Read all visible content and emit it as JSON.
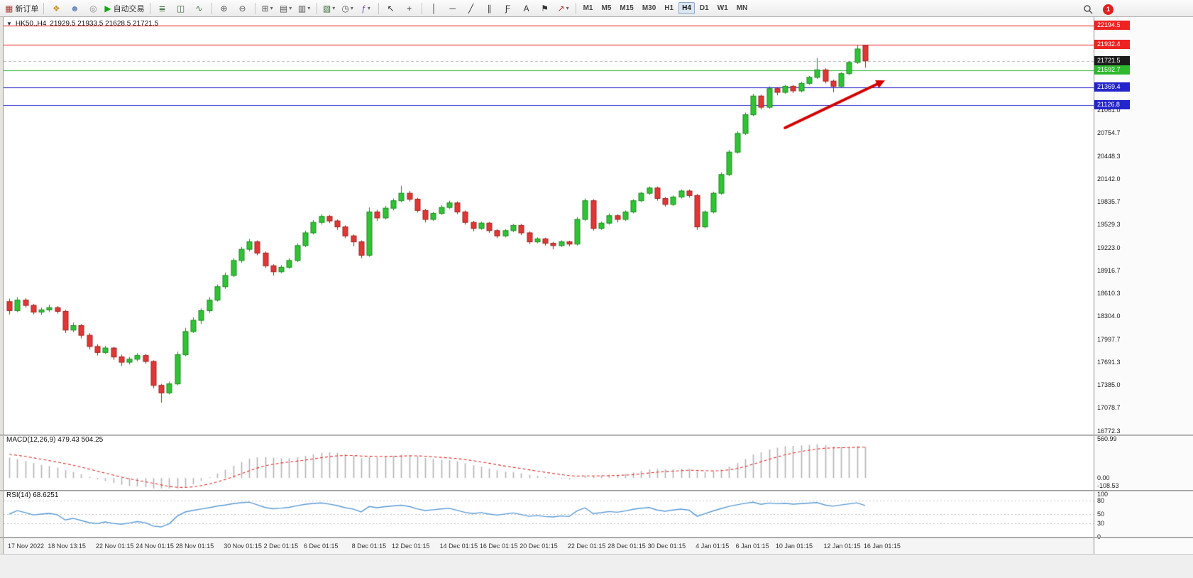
{
  "toolbar": {
    "dropdown_glyph": "▾",
    "notification_count": "1",
    "active_timeframe": "H4",
    "timeframes": [
      "M1",
      "M5",
      "M15",
      "M30",
      "H1",
      "H4",
      "D1",
      "W1",
      "MN"
    ],
    "groups": [
      {
        "items": [
          {
            "name": "new-order-button",
            "icon": "new-order-icon",
            "glyph": "▦",
            "color": "#b23b3b",
            "label": "新订单"
          }
        ]
      },
      {
        "items": [
          {
            "name": "charts-button",
            "icon": "charts-icon",
            "glyph": "❖",
            "color": "#c79c2e"
          },
          {
            "name": "profile-button",
            "icon": "profile-icon",
            "glyph": "☻",
            "color": "#6b86b5"
          },
          {
            "name": "market-button",
            "icon": "market-icon",
            "glyph": "◎",
            "color": "#888888"
          },
          {
            "name": "autotrading-button",
            "icon": "autotrading-play-icon",
            "glyph": "▶",
            "color": "#18a818",
            "label": "自动交易"
          }
        ]
      },
      {
        "items": [
          {
            "name": "bar-chart-mode-button",
            "icon": "bar-chart-icon",
            "glyph": "≣",
            "color": "#3f6f3f"
          },
          {
            "name": "candlestick-mode-button",
            "icon": "candlestick-icon",
            "glyph": "◫",
            "color": "#3f6f3f"
          },
          {
            "name": "line-chart-mode-button",
            "icon": "line-chart-icon",
            "glyph": "∿",
            "color": "#3f6f3f"
          }
        ]
      },
      {
        "items": [
          {
            "name": "zoom-in-button",
            "icon": "zoom-in-icon",
            "glyph": "⊕",
            "color": "#555555"
          },
          {
            "name": "zoom-out-button",
            "icon": "zoom-out-icon",
            "glyph": "⊖",
            "color": "#555555"
          }
        ]
      },
      {
        "items": [
          {
            "name": "tile-windows-button",
            "icon": "tile-windows-icon",
            "glyph": "⊞",
            "color": "#555555",
            "dropdown": true
          },
          {
            "name": "cascade-windows-button",
            "icon": "cascade-windows-icon",
            "glyph": "▤",
            "color": "#555555",
            "dropdown": true
          },
          {
            "name": "arrange-windows-button",
            "icon": "arrange-windows-icon",
            "glyph": "▥",
            "color": "#555555",
            "dropdown": true
          }
        ]
      },
      {
        "items": [
          {
            "name": "new-chart-button",
            "icon": "new-chart-icon",
            "glyph": "▧",
            "color": "#3a6a3a",
            "dropdown": true
          },
          {
            "name": "profiles-button",
            "icon": "clock-icon",
            "glyph": "◷",
            "color": "#555555",
            "dropdown": true
          },
          {
            "name": "indicators-button",
            "icon": "indicators-icon",
            "glyph": "ƒ",
            "color": "#7a4f9e",
            "dropdown": true
          }
        ]
      },
      {
        "items": [
          {
            "name": "cursor-button",
            "icon": "cursor-icon",
            "glyph": "↖",
            "color": "#333333"
          },
          {
            "name": "crosshair-button",
            "icon": "crosshair-icon",
            "glyph": "+",
            "color": "#333333"
          }
        ]
      },
      {
        "items": [
          {
            "name": "vertical-line-button",
            "icon": "vertical-line-icon",
            "glyph": "│",
            "color": "#333333"
          },
          {
            "name": "horizontal-line-button",
            "icon": "horizontal-line-icon",
            "glyph": "─",
            "color": "#333333"
          },
          {
            "name": "trendline-button",
            "icon": "trendline-icon",
            "glyph": "╱",
            "color": "#333333"
          },
          {
            "name": "channel-button",
            "icon": "channel-icon",
            "glyph": "∥",
            "color": "#333333"
          },
          {
            "name": "fibonacci-button",
            "icon": "fibonacci-icon",
            "glyph": "Ƒ",
            "color": "#333333"
          },
          {
            "name": "text-button",
            "icon": "text-icon",
            "glyph": "A",
            "color": "#333333"
          },
          {
            "name": "label-button",
            "icon": "label-icon",
            "glyph": "⚑",
            "color": "#333333"
          },
          {
            "name": "shapes-button",
            "icon": "arrow-shapes-icon",
            "glyph": "↗",
            "color": "#aa3333",
            "dropdown": true
          }
        ]
      },
      {
        "timeframes": true
      }
    ]
  },
  "chart": {
    "header": {
      "toggle_glyph": "▼",
      "symbol_period": "HK50.,H4",
      "ohlc_text": "21929.5 21933.5 21628.5 21721.5"
    },
    "panels": {
      "macd_label": "MACD(12,26,9) 479.43 504.25",
      "rsi_label": "RSI(14) 68.6251"
    }
  },
  "chart_data": {
    "type": "candlestick",
    "symbol": "HK50.",
    "timeframe": "H4",
    "last_candle_ohlc": [
      21929.5,
      21933.5,
      21628.5,
      21721.5
    ],
    "grid": false,
    "price_axis": {
      "range_top": 22250,
      "range_bottom": 16760,
      "tick_labels": [
        "21061.0",
        "20754.7",
        "20448.3",
        "20142.0",
        "19835.7",
        "19529.3",
        "19223.0",
        "18916.7",
        "18610.3",
        "18304.0",
        "17997.7",
        "17691.3",
        "17385.0",
        "17078.7",
        "16772.3"
      ]
    },
    "x_axis": {
      "tick_indices": [
        0,
        5,
        11,
        16,
        21,
        27,
        32,
        37,
        43,
        48,
        54,
        59,
        64,
        70,
        75,
        80,
        86,
        91,
        96,
        102,
        107
      ],
      "tick_labels": [
        "17 Nov 2022",
        "18 Nov 13:15",
        "22 Nov 01:15",
        "24 Nov 01:15",
        "28 Nov 01:15",
        "30 Nov 01:15",
        "2 Dec 01:15",
        "6 Dec 01:15",
        "8 Dec 01:15",
        "12 Dec 01:15",
        "14 Dec 01:15",
        "16 Dec 01:15",
        "20 Dec 01:15",
        "22 Dec 01:15",
        "28 Dec 01:15",
        "30 Dec 01:15",
        "4 Jan 01:15",
        "6 Jan 01:15",
        "10 Jan 01:15",
        "12 Jan 01:15",
        "16 Jan 01:15"
      ]
    },
    "hlines": [
      {
        "price": 22194.5,
        "label": "22194.5",
        "color": "#ee2222"
      },
      {
        "price": 21932.4,
        "label": "21932.4",
        "color": "#ee2222"
      },
      {
        "price": 21592.7,
        "label": "21592.7",
        "color": "#2eb82e"
      },
      {
        "price": 21369.4,
        "label": "21369.4",
        "color": "#2424cc"
      },
      {
        "price": 21126.8,
        "label": "21126.8",
        "color": "#2424cc"
      }
    ],
    "bid_line": {
      "price": 21721.5,
      "label": "21721.5",
      "badge_color": "#1c1c1c"
    },
    "annotations": [
      {
        "type": "arrow",
        "from_index": 97,
        "from_price": 20825,
        "to_index": 109.5,
        "to_price": 21460,
        "color": "#d40000"
      }
    ],
    "indicators": [
      {
        "type": "MACD",
        "params": [
          12,
          26,
          9
        ],
        "current": [
          479.43,
          504.25
        ],
        "scale_labels": [
          "560.99",
          "0.00",
          "-108.53"
        ],
        "scale_values": [
          560.99,
          0,
          -108.53
        ]
      },
      {
        "type": "RSI",
        "params": [
          14
        ],
        "current": 68.6251,
        "scale_labels": [
          "100",
          "80",
          "50",
          "30",
          "0"
        ],
        "scale_values": [
          100,
          80,
          50,
          30,
          0
        ],
        "level_lines": [
          80,
          50,
          30
        ]
      }
    ],
    "colors": {
      "up_fill": "#2fc435",
      "up_stroke": "#1a8a1f",
      "down_fill": "#e33636",
      "down_stroke": "#a01f1f",
      "macd_hist": "#b4b4b4",
      "macd_signal": "#e03030",
      "rsi": "#5b9bd5",
      "arrow": "#d40000"
    },
    "candles": [
      [
        18500,
        18540,
        18330,
        18380
      ],
      [
        18380,
        18560,
        18360,
        18520
      ],
      [
        18520,
        18545,
        18420,
        18450
      ],
      [
        18450,
        18470,
        18330,
        18360
      ],
      [
        18360,
        18420,
        18320,
        18390
      ],
      [
        18390,
        18460,
        18360,
        18420
      ],
      [
        18420,
        18440,
        18340,
        18370
      ],
      [
        18370,
        18390,
        18080,
        18120
      ],
      [
        18120,
        18220,
        18090,
        18180
      ],
      [
        18180,
        18200,
        18010,
        18050
      ],
      [
        18050,
        18080,
        17860,
        17900
      ],
      [
        17900,
        17930,
        17780,
        17820
      ],
      [
        17820,
        17910,
        17800,
        17880
      ],
      [
        17880,
        17895,
        17720,
        17760
      ],
      [
        17760,
        17790,
        17640,
        17690
      ],
      [
        17690,
        17760,
        17660,
        17730
      ],
      [
        17730,
        17810,
        17700,
        17780
      ],
      [
        17780,
        17800,
        17670,
        17700
      ],
      [
        17700,
        17715,
        17340,
        17380
      ],
      [
        17380,
        17400,
        17150,
        17280
      ],
      [
        17280,
        17430,
        17260,
        17400
      ],
      [
        17400,
        17830,
        17380,
        17790
      ],
      [
        17790,
        18150,
        17770,
        18100
      ],
      [
        18100,
        18290,
        18080,
        18250
      ],
      [
        18250,
        18410,
        18200,
        18380
      ],
      [
        18380,
        18560,
        18350,
        18520
      ],
      [
        18520,
        18730,
        18500,
        18700
      ],
      [
        18700,
        18890,
        18670,
        18850
      ],
      [
        18850,
        19080,
        18830,
        19050
      ],
      [
        19050,
        19230,
        19020,
        19200
      ],
      [
        19200,
        19340,
        19170,
        19300
      ],
      [
        19300,
        19320,
        19120,
        19150
      ],
      [
        19150,
        19170,
        18950,
        18980
      ],
      [
        18980,
        19000,
        18850,
        18900
      ],
      [
        18900,
        18990,
        18880,
        18960
      ],
      [
        18960,
        19080,
        18940,
        19050
      ],
      [
        19050,
        19280,
        19030,
        19250
      ],
      [
        19250,
        19450,
        19230,
        19420
      ],
      [
        19420,
        19590,
        19400,
        19560
      ],
      [
        19560,
        19670,
        19530,
        19640
      ],
      [
        19640,
        19660,
        19550,
        19580
      ],
      [
        19580,
        19600,
        19460,
        19500
      ],
      [
        19500,
        19520,
        19350,
        19380
      ],
      [
        19380,
        19400,
        19240,
        19300
      ],
      [
        19300,
        19320,
        19080,
        19120
      ],
      [
        19120,
        19760,
        19100,
        19700
      ],
      [
        19700,
        19730,
        19580,
        19620
      ],
      [
        19620,
        19780,
        19600,
        19750
      ],
      [
        19750,
        19880,
        19720,
        19850
      ],
      [
        19850,
        20050,
        19830,
        19950
      ],
      [
        19950,
        19980,
        19840,
        19870
      ],
      [
        19870,
        19890,
        19690,
        19720
      ],
      [
        19720,
        19740,
        19560,
        19600
      ],
      [
        19600,
        19700,
        19580,
        19680
      ],
      [
        19680,
        19790,
        19660,
        19760
      ],
      [
        19760,
        19850,
        19740,
        19820
      ],
      [
        19820,
        19840,
        19670,
        19700
      ],
      [
        19700,
        19720,
        19530,
        19560
      ],
      [
        19560,
        19580,
        19440,
        19480
      ],
      [
        19480,
        19570,
        19460,
        19550
      ],
      [
        19550,
        19565,
        19420,
        19450
      ],
      [
        19450,
        19470,
        19350,
        19380
      ],
      [
        19380,
        19470,
        19360,
        19450
      ],
      [
        19450,
        19540,
        19430,
        19520
      ],
      [
        19520,
        19540,
        19390,
        19420
      ],
      [
        19420,
        19440,
        19270,
        19300
      ],
      [
        19300,
        19360,
        19280,
        19340
      ],
      [
        19340,
        19355,
        19250,
        19280
      ],
      [
        19280,
        19300,
        19200,
        19250
      ],
      [
        19250,
        19320,
        19230,
        19300
      ],
      [
        19300,
        19315,
        19240,
        19270
      ],
      [
        19270,
        19630,
        19250,
        19600
      ],
      [
        19600,
        19880,
        19580,
        19850
      ],
      [
        19850,
        19870,
        19450,
        19480
      ],
      [
        19480,
        19570,
        19460,
        19550
      ],
      [
        19550,
        19680,
        19530,
        19650
      ],
      [
        19650,
        19670,
        19560,
        19600
      ],
      [
        19600,
        19720,
        19580,
        19700
      ],
      [
        19700,
        19870,
        19680,
        19850
      ],
      [
        19850,
        19970,
        19830,
        19950
      ],
      [
        19950,
        20040,
        19930,
        20020
      ],
      [
        20020,
        20040,
        19850,
        19880
      ],
      [
        19880,
        19900,
        19770,
        19800
      ],
      [
        19800,
        19920,
        19780,
        19900
      ],
      [
        19900,
        20000,
        19880,
        19980
      ],
      [
        19980,
        20000,
        19890,
        19920
      ],
      [
        19920,
        19940,
        19460,
        19500
      ],
      [
        19500,
        19720,
        19480,
        19700
      ],
      [
        19700,
        19970,
        19680,
        19950
      ],
      [
        19950,
        20230,
        19930,
        20200
      ],
      [
        20200,
        20530,
        20180,
        20500
      ],
      [
        20500,
        20780,
        20480,
        20750
      ],
      [
        20750,
        21030,
        20730,
        21000
      ],
      [
        21000,
        21280,
        20980,
        21250
      ],
      [
        21250,
        21270,
        21070,
        21100
      ],
      [
        21100,
        21380,
        21080,
        21350
      ],
      [
        21350,
        21370,
        21260,
        21300
      ],
      [
        21300,
        21400,
        21280,
        21380
      ],
      [
        21380,
        21400,
        21290,
        21320
      ],
      [
        21320,
        21440,
        21300,
        21420
      ],
      [
        21420,
        21520,
        21400,
        21500
      ],
      [
        21500,
        21760,
        21480,
        21600
      ],
      [
        21600,
        21620,
        21420,
        21450
      ],
      [
        21450,
        21470,
        21300,
        21380
      ],
      [
        21380,
        21570,
        21360,
        21550
      ],
      [
        21550,
        21720,
        21530,
        21700
      ],
      [
        21700,
        21930,
        21680,
        21880
      ],
      [
        21929.5,
        21933.5,
        21628.5,
        21721.5
      ]
    ]
  }
}
